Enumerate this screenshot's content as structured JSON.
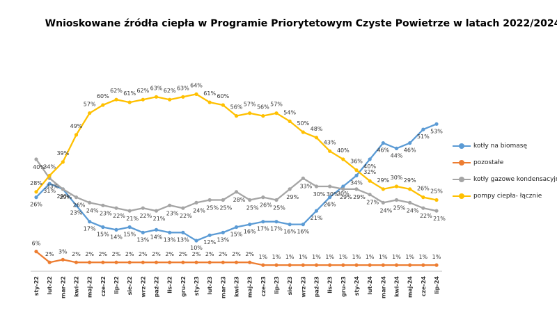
{
  "chart_data": {
    "type": "line",
    "title": "Wnioskowane źródła ciepła w Programie Priorytetowym Czyste Powietrze w latach 2022/2024",
    "x": [
      "sty-22",
      "lut-22",
      "mar-22",
      "kwi-22",
      "maj-22",
      "cze-22",
      "lip-22",
      "sie-22",
      "wrz-22",
      "paź-22",
      "lis-22",
      "gru-22",
      "sty-23",
      "lut-23",
      "mar-23",
      "kwi-23",
      "maj-23",
      "cze-23",
      "lip-23",
      "sie-23",
      "wrz-23",
      "paź-23",
      "lis-23",
      "gru-23",
      "sty-24",
      "lut-24",
      "mar-24",
      "kwi-24",
      "maj-24",
      "cze-24",
      "lip-24"
    ],
    "ylim": [
      0,
      70
    ],
    "grid": false,
    "legend_position": "right",
    "value_format": "percent",
    "series": [
      {
        "name": "kotły na biomasę",
        "color": "#5b9bd5",
        "values": [
          26,
          31,
          29,
          23,
          17,
          15,
          14,
          15,
          13,
          14,
          13,
          13,
          10,
          12,
          13,
          15,
          16,
          17,
          17,
          16,
          16,
          21,
          26,
          30,
          34,
          40,
          46,
          44,
          46,
          51,
          53
        ]
      },
      {
        "name": "pozostałe",
        "color": "#ed7d31",
        "values": [
          6,
          2,
          3,
          2,
          2,
          2,
          2,
          2,
          2,
          2,
          2,
          2,
          2,
          2,
          2,
          2,
          2,
          1,
          1,
          1,
          1,
          1,
          1,
          1,
          1,
          1,
          1,
          1,
          1,
          1,
          1
        ]
      },
      {
        "name": "kotły gazowe kondensacyjne",
        "color": "#a5a5a5",
        "values": [
          40,
          33,
          29,
          26,
          24,
          23,
          22,
          21,
          22,
          21,
          23,
          22,
          24,
          25,
          25,
          28,
          25,
          26,
          25,
          29,
          33,
          30,
          30,
          29,
          29,
          27,
          24,
          25,
          24,
          22,
          21
        ]
      },
      {
        "name": "pompy ciepła- łącznie",
        "color": "#ffc000",
        "values": [
          28,
          34,
          39,
          49,
          57,
          60,
          62,
          61,
          62,
          63,
          62,
          63,
          64,
          61,
          60,
          56,
          57,
          56,
          57,
          54,
          50,
          48,
          43,
          40,
          36,
          32,
          29,
          30,
          29,
          26,
          25
        ]
      }
    ]
  }
}
